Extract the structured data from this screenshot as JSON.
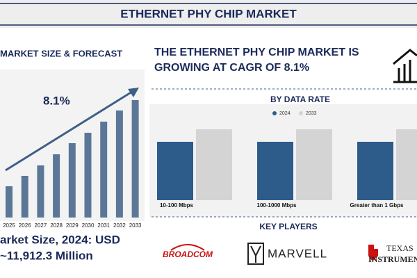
{
  "header": {
    "title": "ETHERNET PHY CHIP MARKET"
  },
  "headline": [
    "THE ETHERNET PHY CHIP MARKET IS",
    "GROWING AT CAGR OF 8.1%"
  ],
  "market_size": [
    "arket Size, 2024: USD",
    "~11,912.3 Million"
  ],
  "key_players": {
    "title": "KEY PLAYERS",
    "broadcom": "BROADCOM",
    "marvell": "MARVELL",
    "ti": [
      "TEXAS",
      "INSTRUMENTS"
    ]
  },
  "chart_data": [
    {
      "type": "bar",
      "title": "MARKET SIZE & FORECAST",
      "annotation": "8.1%",
      "categories": [
        "2025",
        "2026",
        "2027",
        "2028",
        "2029",
        "2030",
        "2031",
        "2032",
        "2033"
      ],
      "values": [
        45,
        60,
        75,
        91,
        107,
        122,
        138,
        154,
        169
      ],
      "color": "#5b7798",
      "ylim": [
        0,
        170
      ]
    },
    {
      "type": "grouped-bar",
      "title": "BY DATA RATE",
      "categories": [
        "10-100 Mbps",
        "100-1000 Mbps",
        "Greater than 1 Gbps"
      ],
      "series": [
        {
          "name": "2024",
          "color": "#2d5b8a",
          "values": [
            84,
            84,
            84
          ]
        },
        {
          "name": "2033",
          "color": "#d4d4d4",
          "values": [
            102,
            102,
            102
          ]
        }
      ],
      "ylim": [
        0,
        110
      ]
    }
  ]
}
